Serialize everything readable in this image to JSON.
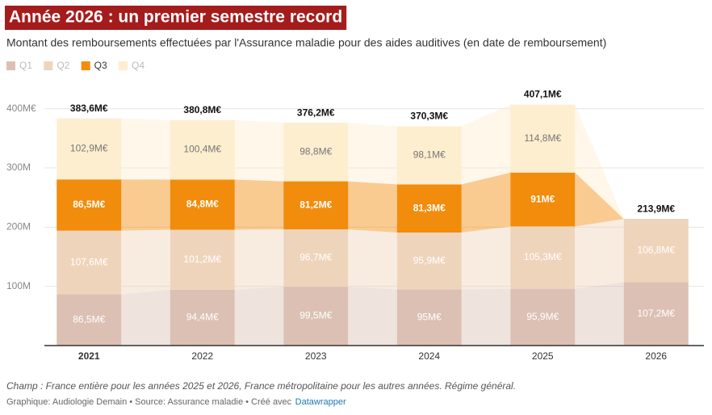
{
  "chart_data": {
    "type": "stacked-bar",
    "title": "Année 2026 : un premier semestre record",
    "subtitle": "Montant des remboursements effectuées par l'Assurance maladie pour des aides auditives (en date de remboursement)",
    "categories": [
      "2021",
      "2022",
      "2023",
      "2024",
      "2025",
      "2026"
    ],
    "series": [
      {
        "name": "Q1",
        "color": "#dcc0b4",
        "values": [
          86.5,
          94.4,
          99.5,
          95,
          95.9,
          107.2
        ],
        "value_labels": [
          "86,5M€",
          "94,4M€",
          "99,5M€",
          "95M€",
          "95,9M€",
          "107,2M€"
        ]
      },
      {
        "name": "Q2",
        "color": "#efd4bc",
        "values": [
          107.6,
          101.2,
          96.7,
          95.9,
          105.3,
          106.8
        ],
        "value_labels": [
          "107,6M€",
          "101,2M€",
          "96,7M€",
          "95,9M€",
          "105,3M€",
          "106,8M€"
        ]
      },
      {
        "name": "Q3",
        "color": "#f28c0c",
        "values": [
          86.5,
          84.8,
          81.2,
          81.3,
          91,
          null
        ],
        "value_labels": [
          "86,5M€",
          "84,8M€",
          "81,2M€",
          "81,3M€",
          "91M€",
          null
        ]
      },
      {
        "name": "Q4",
        "color": "#fdeed0",
        "values": [
          102.9,
          100.4,
          98.8,
          98.1,
          114.8,
          null
        ],
        "value_labels": [
          "102,9M€",
          "100,4M€",
          "98,8M€",
          "98,1M€",
          "114,8M€",
          null
        ]
      }
    ],
    "totals": {
      "values": [
        383.6,
        380.8,
        376.2,
        370.3,
        407.1,
        213.9
      ],
      "value_labels": [
        "383,6M€",
        "380,8M€",
        "376,2M€",
        "370,3M€",
        "407,1M€",
        "213,9M€"
      ]
    },
    "ylim": [
      0,
      420
    ],
    "yticks": [
      {
        "value": 100,
        "label": "100M"
      },
      {
        "value": 200,
        "label": "200M"
      },
      {
        "value": 300,
        "label": "300M"
      },
      {
        "value": 400,
        "label": "400M€"
      }
    ],
    "grid": true,
    "note": "Champ : France entière pour les années 2025 et 2026, France métropolitaine pour les autres années. Régime général.",
    "source": "Graphique: Audiologie Demain • Source: Assurance maladie • Créé avec",
    "source_link": "Datawrapper"
  }
}
